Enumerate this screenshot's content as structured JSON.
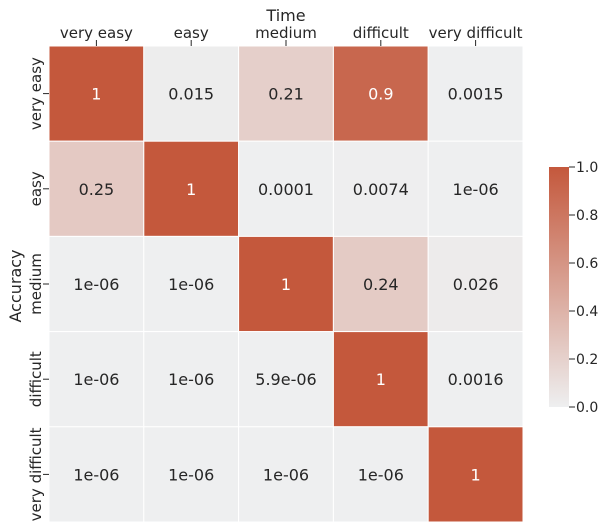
{
  "chart_data": {
    "type": "heatmap",
    "title": "",
    "xlabel": "Time",
    "ylabel": "Accuracy",
    "x_categories": [
      "very easy",
      "easy",
      "medium",
      "difficult",
      "very difficult"
    ],
    "y_categories": [
      "very easy",
      "easy",
      "medium",
      "difficult",
      "very difficult"
    ],
    "cell_labels": [
      [
        "1",
        "0.015",
        "0.21",
        "0.9",
        "0.0015"
      ],
      [
        "0.25",
        "1",
        "0.0001",
        "0.0074",
        "1e-06"
      ],
      [
        "1e-06",
        "1e-06",
        "1",
        "0.24",
        "0.026"
      ],
      [
        "1e-06",
        "1e-06",
        "5.9e-06",
        "1",
        "0.0016"
      ],
      [
        "1e-06",
        "1e-06",
        "1e-06",
        "1e-06",
        "1"
      ]
    ],
    "values": [
      [
        1,
        0.015,
        0.21,
        0.9,
        0.0015
      ],
      [
        0.25,
        1,
        0.0001,
        0.0074,
        1e-06
      ],
      [
        1e-06,
        1e-06,
        1,
        0.24,
        0.026
      ],
      [
        1e-06,
        1e-06,
        5.9e-06,
        1,
        0.0016
      ],
      [
        1e-06,
        1e-06,
        1e-06,
        1e-06,
        1
      ]
    ],
    "colorbar": {
      "ticks": [
        "0.0",
        "0.2",
        "0.4",
        "0.6",
        "0.8",
        "1.0"
      ],
      "vmin": 0,
      "vmax": 1,
      "color_low": "#eeeff0",
      "color_high": "#c4583c"
    },
    "x_axis_position": "top",
    "grid": false
  }
}
